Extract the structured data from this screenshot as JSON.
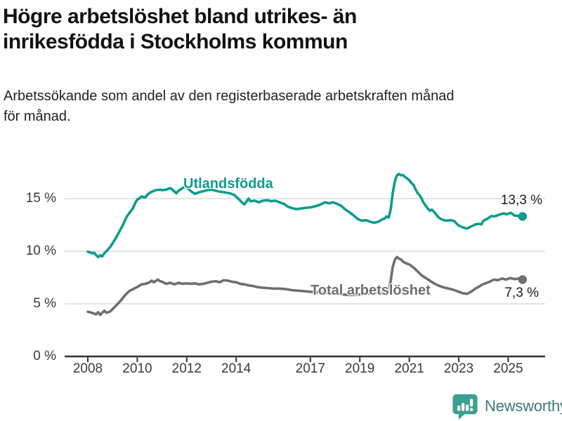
{
  "header": {
    "title_line1": "Högre arbetslöshet bland utrikes- än",
    "title_line2": "inrikesfödda i Stockholms kommun",
    "subtitle_line1": "Arbetssökande som andel av den registerbaserade arbetskraften månad",
    "subtitle_line2": "för månad."
  },
  "chart_data": {
    "type": "line",
    "title": "Högre arbetslöshet bland utrikes- än inrikesfödda i Stockholms kommun",
    "subtitle": "Arbetssökande som andel av den registerbaserade arbetskraften månad för månad.",
    "unit": "%",
    "x_range": [
      2008,
      2025.6
    ],
    "ylim": [
      0,
      18
    ],
    "grid": "horizontal",
    "y_ticks": [
      0,
      5,
      10,
      15
    ],
    "y_tick_labels": [
      "0 %",
      "5 %",
      "10 %",
      "15 %"
    ],
    "x_ticks": [
      2008,
      2010,
      2012,
      2014,
      2017,
      2019,
      2021,
      2023,
      2025
    ],
    "x_tick_labels": [
      "2008",
      "2010",
      "2012",
      "2014",
      "2017",
      "2019",
      "2021",
      "2023",
      "2025"
    ],
    "axis_color": "#2f2f2f",
    "grid_color": "#dbdbdb",
    "series": [
      {
        "name": "Utlandsfödda",
        "color": "#0E9C8B",
        "end_label": "13,3 %",
        "end_value": 13.3,
        "points": [
          [
            2008,
            9.95
          ],
          [
            2008.08,
            9.9
          ],
          [
            2008.17,
            9.8
          ],
          [
            2008.25,
            9.85
          ],
          [
            2008.33,
            9.65
          ],
          [
            2008.42,
            9.45
          ],
          [
            2008.5,
            9.6
          ],
          [
            2008.58,
            9.5
          ],
          [
            2008.67,
            9.8
          ],
          [
            2008.75,
            10
          ],
          [
            2008.83,
            10.2
          ],
          [
            2008.92,
            10.45
          ],
          [
            2009,
            10.75
          ],
          [
            2009.17,
            11.4
          ],
          [
            2009.33,
            12.1
          ],
          [
            2009.42,
            12.5
          ],
          [
            2009.5,
            12.9
          ],
          [
            2009.58,
            13.3
          ],
          [
            2009.67,
            13.6
          ],
          [
            2009.83,
            14.1
          ],
          [
            2009.92,
            14.6
          ],
          [
            2010,
            14.9
          ],
          [
            2010.08,
            15
          ],
          [
            2010.17,
            15.2
          ],
          [
            2010.25,
            15.15
          ],
          [
            2010.33,
            15.1
          ],
          [
            2010.42,
            15.4
          ],
          [
            2010.58,
            15.65
          ],
          [
            2010.75,
            15.8
          ],
          [
            2010.92,
            15.85
          ],
          [
            2011,
            15.8
          ],
          [
            2011.17,
            15.85
          ],
          [
            2011.33,
            16
          ],
          [
            2011.42,
            15.85
          ],
          [
            2011.58,
            15.5
          ],
          [
            2011.67,
            15.75
          ],
          [
            2011.83,
            16
          ],
          [
            2011.92,
            16.1
          ],
          [
            2012,
            16.05
          ],
          [
            2012.17,
            15.7
          ],
          [
            2012.33,
            15.45
          ],
          [
            2012.5,
            15.6
          ],
          [
            2012.67,
            15.7
          ],
          [
            2012.83,
            15.8
          ],
          [
            2013,
            15.85
          ],
          [
            2013.25,
            15.7
          ],
          [
            2013.5,
            15.6
          ],
          [
            2013.75,
            15.5
          ],
          [
            2013.92,
            15.35
          ],
          [
            2014.08,
            15
          ],
          [
            2014.25,
            14.6
          ],
          [
            2014.33,
            14.45
          ],
          [
            2014.5,
            15
          ],
          [
            2014.58,
            14.75
          ],
          [
            2014.75,
            14.8
          ],
          [
            2014.92,
            14.65
          ],
          [
            2015.08,
            14.8
          ],
          [
            2015.25,
            14.85
          ],
          [
            2015.42,
            14.75
          ],
          [
            2015.58,
            14.8
          ],
          [
            2015.75,
            14.65
          ],
          [
            2015.92,
            14.5
          ],
          [
            2016.08,
            14.25
          ],
          [
            2016.25,
            14.1
          ],
          [
            2016.42,
            14
          ],
          [
            2016.58,
            14.05
          ],
          [
            2016.75,
            14.1
          ],
          [
            2016.92,
            14.15
          ],
          [
            2017.08,
            14.2
          ],
          [
            2017.25,
            14.3
          ],
          [
            2017.42,
            14.45
          ],
          [
            2017.58,
            14.65
          ],
          [
            2017.75,
            14.55
          ],
          [
            2017.92,
            14.65
          ],
          [
            2018.08,
            14.5
          ],
          [
            2018.25,
            14.3
          ],
          [
            2018.42,
            13.95
          ],
          [
            2018.58,
            13.7
          ],
          [
            2018.75,
            13.4
          ],
          [
            2018.92,
            13.05
          ],
          [
            2019.08,
            12.9
          ],
          [
            2019.25,
            12.95
          ],
          [
            2019.42,
            12.8
          ],
          [
            2019.58,
            12.7
          ],
          [
            2019.75,
            12.8
          ],
          [
            2019.92,
            13.05
          ],
          [
            2020,
            13.1
          ],
          [
            2020.08,
            13.3
          ],
          [
            2020.17,
            13.2
          ],
          [
            2020.25,
            14
          ],
          [
            2020.33,
            15.5
          ],
          [
            2020.42,
            16.7
          ],
          [
            2020.5,
            17.2
          ],
          [
            2020.58,
            17.35
          ],
          [
            2020.67,
            17.2
          ],
          [
            2020.75,
            17.25
          ],
          [
            2020.83,
            17.05
          ],
          [
            2020.92,
            16.9
          ],
          [
            2021,
            16.75
          ],
          [
            2021.08,
            16.5
          ],
          [
            2021.17,
            16.3
          ],
          [
            2021.25,
            15.9
          ],
          [
            2021.33,
            15.55
          ],
          [
            2021.42,
            15.3
          ],
          [
            2021.5,
            15
          ],
          [
            2021.58,
            14.6
          ],
          [
            2021.67,
            14.3
          ],
          [
            2021.75,
            14.05
          ],
          [
            2021.83,
            13.85
          ],
          [
            2021.92,
            13.95
          ],
          [
            2022,
            13.75
          ],
          [
            2022.08,
            13.5
          ],
          [
            2022.17,
            13.25
          ],
          [
            2022.25,
            13.1
          ],
          [
            2022.33,
            13
          ],
          [
            2022.5,
            12.9
          ],
          [
            2022.67,
            12.95
          ],
          [
            2022.83,
            12.85
          ],
          [
            2022.92,
            12.6
          ],
          [
            2023,
            12.45
          ],
          [
            2023.17,
            12.25
          ],
          [
            2023.33,
            12.15
          ],
          [
            2023.5,
            12.35
          ],
          [
            2023.67,
            12.55
          ],
          [
            2023.83,
            12.6
          ],
          [
            2023.92,
            12.55
          ],
          [
            2024,
            12.9
          ],
          [
            2024.17,
            13.1
          ],
          [
            2024.33,
            13.35
          ],
          [
            2024.42,
            13.3
          ],
          [
            2024.5,
            13.35
          ],
          [
            2024.67,
            13.5
          ],
          [
            2024.83,
            13.6
          ],
          [
            2024.92,
            13.5
          ],
          [
            2025,
            13.55
          ],
          [
            2025.08,
            13.65
          ],
          [
            2025.17,
            13.55
          ],
          [
            2025.25,
            13.4
          ],
          [
            2025.42,
            13.35
          ],
          [
            2025.58,
            13.3
          ]
        ]
      },
      {
        "name": "Total arbetslöshet",
        "color": "#6E6E6E",
        "end_label": "7,3 %",
        "end_value": 7.3,
        "points": [
          [
            2008,
            4.25
          ],
          [
            2008.17,
            4.15
          ],
          [
            2008.33,
            4
          ],
          [
            2008.42,
            4.2
          ],
          [
            2008.5,
            3.95
          ],
          [
            2008.58,
            4.15
          ],
          [
            2008.67,
            4.35
          ],
          [
            2008.75,
            4.15
          ],
          [
            2008.83,
            4.2
          ],
          [
            2008.92,
            4.3
          ],
          [
            2009,
            4.5
          ],
          [
            2009.17,
            4.9
          ],
          [
            2009.33,
            5.3
          ],
          [
            2009.5,
            5.8
          ],
          [
            2009.67,
            6.2
          ],
          [
            2009.83,
            6.4
          ],
          [
            2010,
            6.6
          ],
          [
            2010.17,
            6.85
          ],
          [
            2010.33,
            6.9
          ],
          [
            2010.5,
            7.05
          ],
          [
            2010.58,
            7.2
          ],
          [
            2010.67,
            7.05
          ],
          [
            2010.83,
            7.3
          ],
          [
            2010.92,
            7.15
          ],
          [
            2011,
            7.1
          ],
          [
            2011.17,
            6.9
          ],
          [
            2011.33,
            7
          ],
          [
            2011.5,
            6.85
          ],
          [
            2011.67,
            7
          ],
          [
            2011.83,
            6.9
          ],
          [
            2012,
            6.95
          ],
          [
            2012.17,
            6.9
          ],
          [
            2012.33,
            6.95
          ],
          [
            2012.5,
            6.85
          ],
          [
            2012.67,
            6.9
          ],
          [
            2012.83,
            7
          ],
          [
            2013,
            7.1
          ],
          [
            2013.17,
            7.15
          ],
          [
            2013.33,
            7.05
          ],
          [
            2013.5,
            7.25
          ],
          [
            2013.67,
            7.2
          ],
          [
            2013.83,
            7.1
          ],
          [
            2014,
            7.05
          ],
          [
            2014.17,
            6.9
          ],
          [
            2014.33,
            6.85
          ],
          [
            2014.5,
            6.75
          ],
          [
            2014.67,
            6.7
          ],
          [
            2014.83,
            6.6
          ],
          [
            2015,
            6.55
          ],
          [
            2015.25,
            6.5
          ],
          [
            2015.5,
            6.45
          ],
          [
            2015.75,
            6.45
          ],
          [
            2016,
            6.4
          ],
          [
            2016.25,
            6.3
          ],
          [
            2016.5,
            6.25
          ],
          [
            2016.75,
            6.2
          ],
          [
            2017,
            6.15
          ],
          [
            2017.25,
            6.1
          ],
          [
            2017.5,
            6.05
          ],
          [
            2017.75,
            6
          ],
          [
            2018,
            5.95
          ],
          [
            2018.25,
            5.9
          ],
          [
            2018.5,
            5.85
          ],
          [
            2018.75,
            5.85
          ],
          [
            2019,
            5.9
          ],
          [
            2019.25,
            5.95
          ],
          [
            2019.5,
            6
          ],
          [
            2019.75,
            6.05
          ],
          [
            2020,
            6.1
          ],
          [
            2020.08,
            6.2
          ],
          [
            2020.17,
            6.3
          ],
          [
            2020.25,
            7.2
          ],
          [
            2020.33,
            8.5
          ],
          [
            2020.42,
            9.2
          ],
          [
            2020.5,
            9.45
          ],
          [
            2020.58,
            9.3
          ],
          [
            2020.67,
            9.2
          ],
          [
            2020.75,
            9
          ],
          [
            2020.83,
            8.9
          ],
          [
            2020.92,
            8.8
          ],
          [
            2021,
            8.75
          ],
          [
            2021.17,
            8.45
          ],
          [
            2021.33,
            8.1
          ],
          [
            2021.5,
            7.7
          ],
          [
            2021.67,
            7.45
          ],
          [
            2021.83,
            7.2
          ],
          [
            2022,
            6.95
          ],
          [
            2022.17,
            6.75
          ],
          [
            2022.33,
            6.6
          ],
          [
            2022.5,
            6.5
          ],
          [
            2022.67,
            6.4
          ],
          [
            2022.83,
            6.3
          ],
          [
            2023,
            6.15
          ],
          [
            2023.17,
            6
          ],
          [
            2023.33,
            5.95
          ],
          [
            2023.5,
            6.15
          ],
          [
            2023.67,
            6.45
          ],
          [
            2023.83,
            6.65
          ],
          [
            2023.92,
            6.8
          ],
          [
            2024.08,
            6.95
          ],
          [
            2024.25,
            7.1
          ],
          [
            2024.42,
            7.3
          ],
          [
            2024.58,
            7.25
          ],
          [
            2024.75,
            7.4
          ],
          [
            2024.92,
            7.3
          ],
          [
            2025.08,
            7.45
          ],
          [
            2025.25,
            7.35
          ],
          [
            2025.42,
            7.4
          ],
          [
            2025.58,
            7.3
          ]
        ]
      }
    ]
  },
  "footer": {
    "brand": "Newsworthy",
    "icon_color": "#3BA090",
    "text_color": "#3E7973"
  }
}
